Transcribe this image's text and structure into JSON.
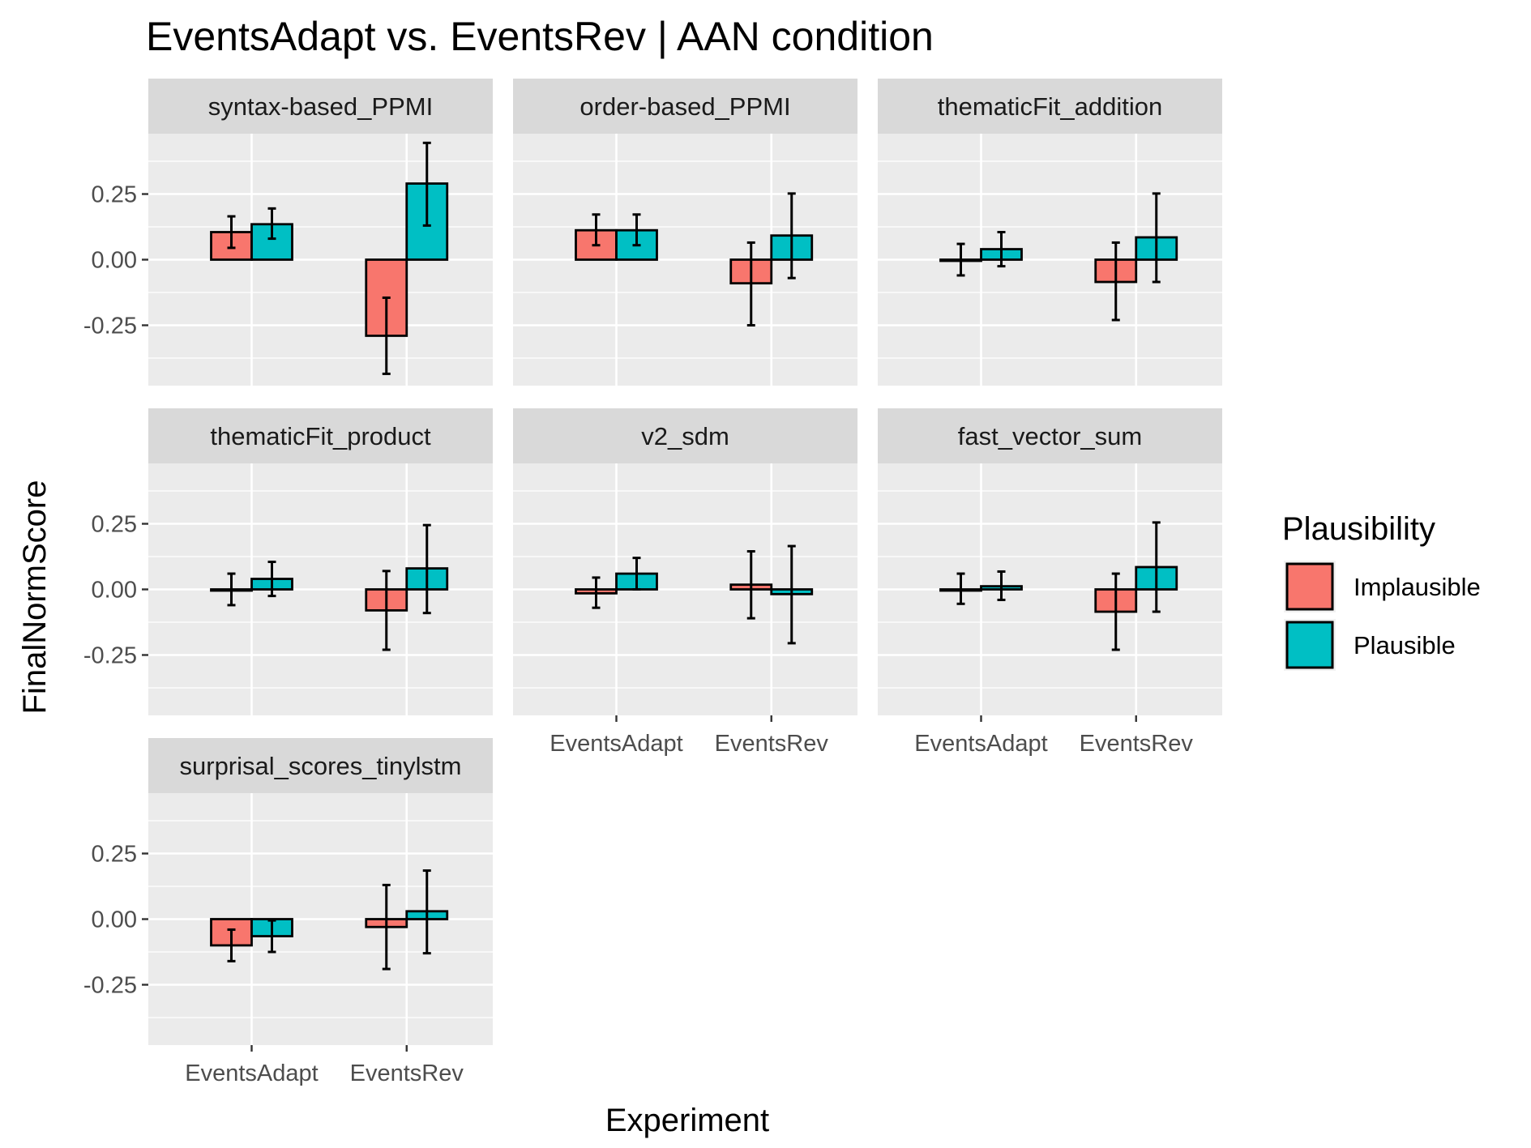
{
  "chart_data": {
    "type": "bar",
    "title": "EventsAdapt vs. EventsRev | AAN condition",
    "xlabel": "Experiment",
    "ylabel": "FinalNormScore",
    "ylim": [
      -0.48,
      0.48
    ],
    "yticks": [
      0.25,
      0.0,
      -0.25
    ],
    "ytick_labels": [
      "0.25",
      "0.00",
      "-0.25"
    ],
    "categories": [
      "EventsAdapt",
      "EventsRev"
    ],
    "grid": true,
    "legend": {
      "title": "Plausibility",
      "position": "right",
      "entries": [
        {
          "name": "Implausible",
          "color": "#F8766D"
        },
        {
          "name": "Plausible",
          "color": "#00BFC4"
        }
      ]
    },
    "colors": {
      "Implausible": "#F8766D",
      "Plausible": "#00BFC4",
      "panel_bg": "#EBEBEB",
      "strip_bg": "#D9D9D9",
      "grid": "#FFFFFF"
    },
    "panels": [
      {
        "name": "syntax-based_PPMI",
        "bars": {
          "Implausible": [
            0.105,
            -0.29
          ],
          "Plausible": [
            0.135,
            0.29
          ]
        },
        "err_low": {
          "Implausible": [
            0.045,
            -0.435
          ],
          "Plausible": [
            0.08,
            0.13
          ]
        },
        "err_high": {
          "Implausible": [
            0.165,
            -0.145
          ],
          "Plausible": [
            0.195,
            0.445
          ]
        }
      },
      {
        "name": "order-based_PPMI",
        "bars": {
          "Implausible": [
            0.112,
            -0.09
          ],
          "Plausible": [
            0.112,
            0.092
          ]
        },
        "err_low": {
          "Implausible": [
            0.055,
            -0.25
          ],
          "Plausible": [
            0.055,
            -0.07
          ]
        },
        "err_high": {
          "Implausible": [
            0.172,
            0.065
          ],
          "Plausible": [
            0.172,
            0.252
          ]
        }
      },
      {
        "name": "thematicFit_addition",
        "bars": {
          "Implausible": [
            0.0,
            -0.085
          ],
          "Plausible": [
            0.04,
            0.085
          ]
        },
        "err_low": {
          "Implausible": [
            -0.06,
            -0.23
          ],
          "Plausible": [
            -0.025,
            -0.085
          ]
        },
        "err_high": {
          "Implausible": [
            0.06,
            0.065
          ],
          "Plausible": [
            0.105,
            0.252
          ]
        }
      },
      {
        "name": "thematicFit_product",
        "bars": {
          "Implausible": [
            0.0,
            -0.08
          ],
          "Plausible": [
            0.04,
            0.08
          ]
        },
        "err_low": {
          "Implausible": [
            -0.06,
            -0.23
          ],
          "Plausible": [
            -0.025,
            -0.09
          ]
        },
        "err_high": {
          "Implausible": [
            0.06,
            0.07
          ],
          "Plausible": [
            0.105,
            0.245
          ]
        }
      },
      {
        "name": "v2_sdm",
        "bars": {
          "Implausible": [
            -0.015,
            0.018
          ],
          "Plausible": [
            0.06,
            -0.018
          ]
        },
        "err_low": {
          "Implausible": [
            -0.07,
            -0.11
          ],
          "Plausible": [
            0.0,
            -0.205
          ]
        },
        "err_high": {
          "Implausible": [
            0.045,
            0.145
          ],
          "Plausible": [
            0.12,
            0.165
          ]
        }
      },
      {
        "name": "fast_vector_sum",
        "bars": {
          "Implausible": [
            0.0,
            -0.085
          ],
          "Plausible": [
            0.012,
            0.085
          ]
        },
        "err_low": {
          "Implausible": [
            -0.055,
            -0.23
          ],
          "Plausible": [
            -0.04,
            -0.085
          ]
        },
        "err_high": {
          "Implausible": [
            0.06,
            0.06
          ],
          "Plausible": [
            0.068,
            0.255
          ]
        }
      },
      {
        "name": "surprisal_scores_tinylstm",
        "bars": {
          "Implausible": [
            -0.1,
            -0.03
          ],
          "Plausible": [
            -0.065,
            0.03
          ]
        },
        "err_low": {
          "Implausible": [
            -0.16,
            -0.19
          ],
          "Plausible": [
            -0.125,
            -0.13
          ]
        },
        "err_high": {
          "Implausible": [
            -0.04,
            0.13
          ],
          "Plausible": [
            -0.005,
            0.185
          ]
        }
      }
    ]
  }
}
